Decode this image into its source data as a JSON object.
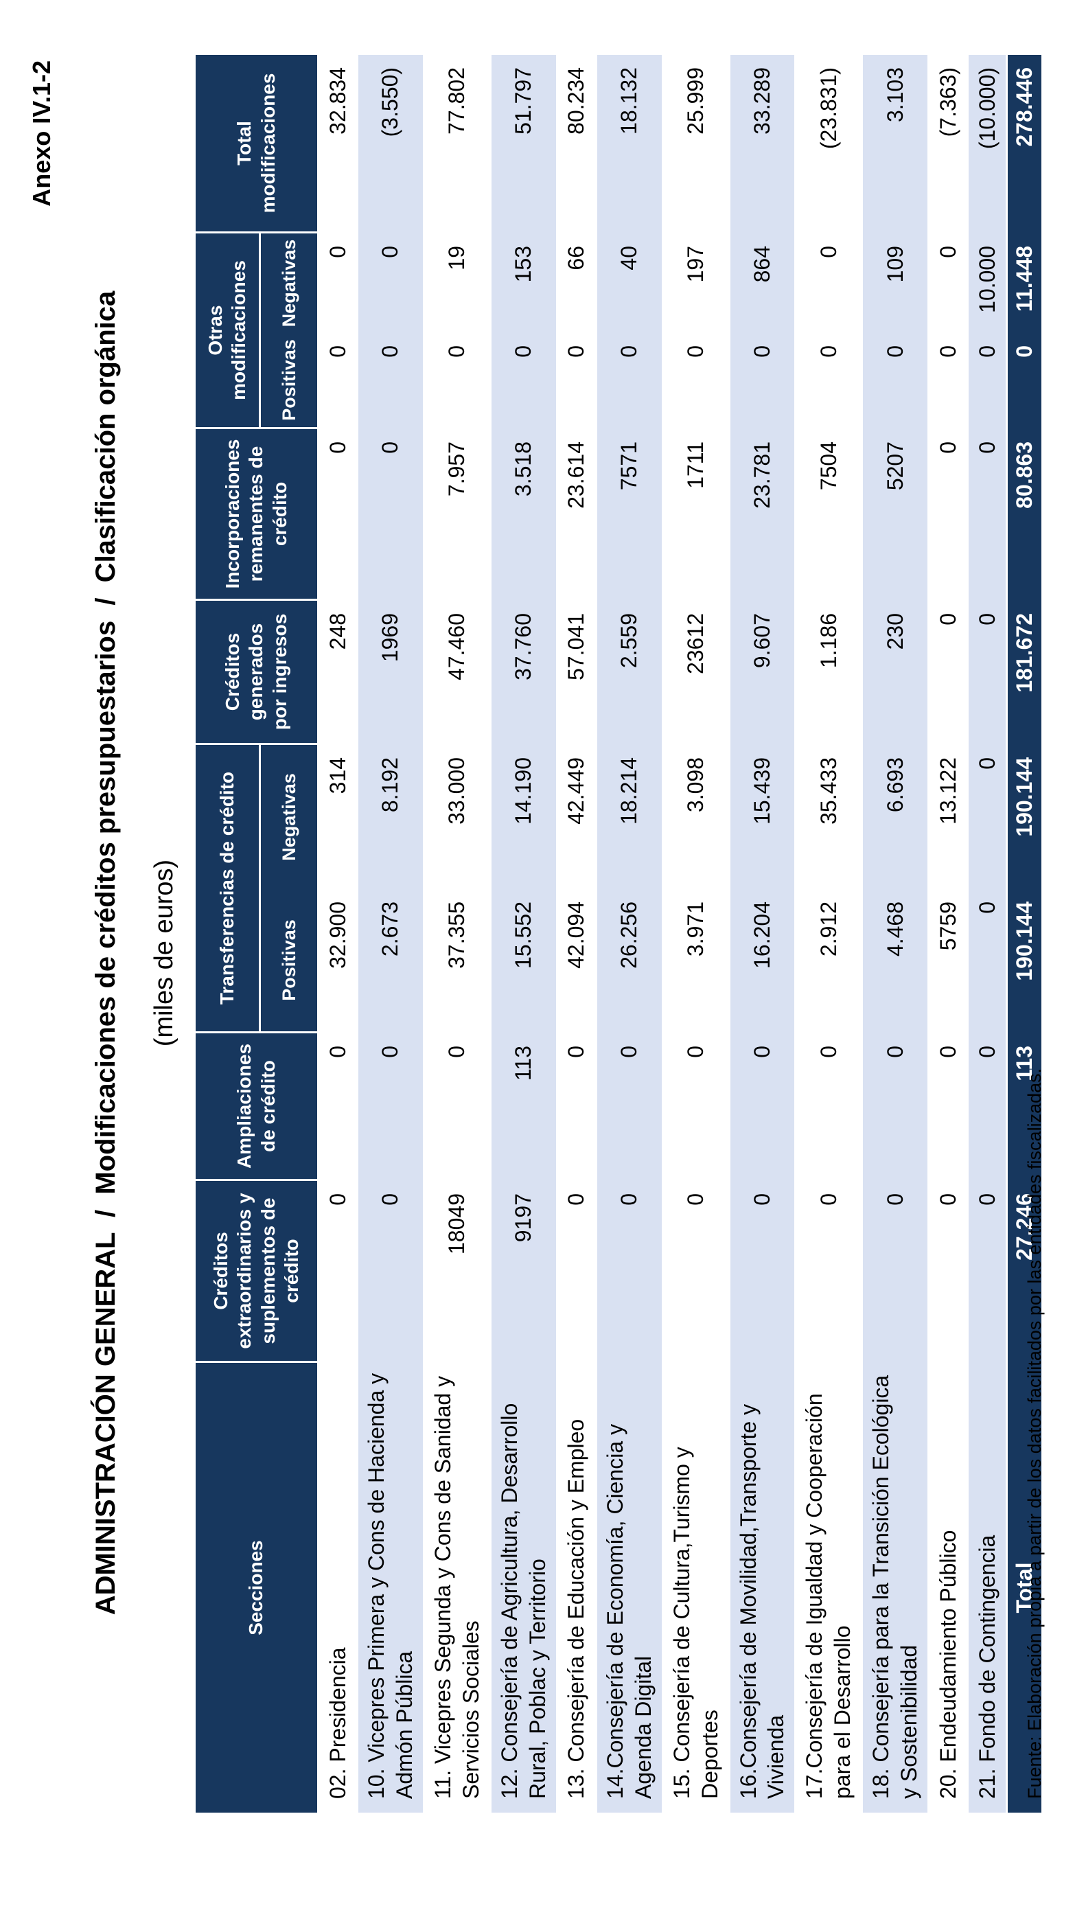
{
  "page": {
    "annex": "Anexo IV.1-2",
    "title": "ADMINISTRACIÓN GENERAL  /  Modificaciones de créditos presupuestarios  /  Clasificación orgánica",
    "subtitle": "(miles de euros)",
    "source_note": "Fuente: Elaboración propia a partir de los datos facilitados por las entidades fiscalizadas."
  },
  "colors": {
    "header_bg": "#17375e",
    "header_text": "#ffffff",
    "stripe_bg": "#d9e1f2",
    "text": "#000000"
  },
  "table": {
    "columns": [
      {
        "label": "Secciones"
      },
      {
        "label": "Créditos extraordinarios y suplementos de crédito"
      },
      {
        "label": "Ampliaciones de crédito"
      },
      {
        "label": "Transferencias de crédito",
        "subcolumns": [
          "Positivas",
          "Negativas"
        ]
      },
      {
        "label": "Créditos generados por ingresos"
      },
      {
        "label": "Incorporaciones remanentes de crédito"
      },
      {
        "label": "Otras modificaciones",
        "subcolumns": [
          "Positivas",
          "Negativas"
        ]
      },
      {
        "label": "Total modificaciones"
      }
    ],
    "rows": [
      {
        "label": "02. Presidencia",
        "values": [
          "0",
          "0",
          "32.900",
          "314",
          "248",
          "0",
          "0",
          "0",
          "32.834"
        ]
      },
      {
        "label": "10. Vicepres Primera y Cons de Hacienda y Admón Pública",
        "values": [
          "0",
          "0",
          "2.673",
          "8.192",
          "1969",
          "0",
          "0",
          "0",
          "(3.550)"
        ]
      },
      {
        "label": "11. Vicepres Segunda y Cons de Sanidad y Servicios Sociales",
        "values": [
          "18049",
          "0",
          "37.355",
          "33.000",
          "47.460",
          "7.957",
          "0",
          "19",
          "77.802"
        ]
      },
      {
        "label": "12. Consejería de Agricultura, Desarrollo Rural, Poblac y Territorio",
        "values": [
          "9197",
          "113",
          "15.552",
          "14.190",
          "37.760",
          "3.518",
          "0",
          "153",
          "51.797"
        ]
      },
      {
        "label": "13. Consejería de Educación y Empleo",
        "values": [
          "0",
          "0",
          "42.094",
          "42.449",
          "57.041",
          "23.614",
          "0",
          "66",
          "80.234"
        ]
      },
      {
        "label": "14.Consejería de Economía, Ciencia y Agenda Digital",
        "values": [
          "0",
          "0",
          "26.256",
          "18.214",
          "2.559",
          "7571",
          "0",
          "40",
          "18.132"
        ]
      },
      {
        "label": "15. Consejería de Cultura,Turismo y Deportes",
        "values": [
          "0",
          "0",
          "3.971",
          "3.098",
          "23612",
          "1711",
          "0",
          "197",
          "25.999"
        ]
      },
      {
        "label": "16.Consejería de Movilidad,Transporte y Vivienda",
        "values": [
          "0",
          "0",
          "16.204",
          "15.439",
          "9.607",
          "23.781",
          "0",
          "864",
          "33.289"
        ]
      },
      {
        "label": "17.Consejería de Igualdad y Cooperación para el Desarrollo",
        "values": [
          "0",
          "0",
          "2.912",
          "35.433",
          "1.186",
          "7504",
          "0",
          "0",
          "(23.831)"
        ]
      },
      {
        "label": "18. Consejería para la Transición Ecológica y Sostenibilidad",
        "values": [
          "0",
          "0",
          "4.468",
          "6.693",
          "230",
          "5207",
          "0",
          "109",
          "3.103"
        ]
      },
      {
        "label": "20. Endeudamiento Público",
        "values": [
          "0",
          "0",
          "5759",
          "13.122",
          "0",
          "0",
          "0",
          "0",
          "(7.363)"
        ]
      },
      {
        "label": "21. Fondo de Contingencia",
        "values": [
          "0",
          "0",
          "0",
          "0",
          "0",
          "0",
          "0",
          "10.000",
          "(10.000)"
        ]
      }
    ],
    "total_row": {
      "label": "Total",
      "values": [
        "27.246",
        "113",
        "190.144",
        "190.144",
        "181.672",
        "80.863",
        "0",
        "11.448",
        "278.446"
      ]
    }
  }
}
